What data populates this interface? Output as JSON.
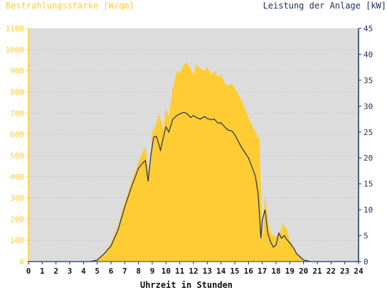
{
  "chart_data": {
    "type": "area",
    "title_left": "Bestrahlungsstärke [W/qm]",
    "title_right": "Leistung der Anlage [kW]",
    "xlabel": "Uhrzeit in Stunden",
    "xlim": [
      0,
      24
    ],
    "y_left_lim": [
      0,
      1100
    ],
    "y_right_lim": [
      0,
      45
    ],
    "x_ticks": [
      0,
      1,
      2,
      3,
      4,
      5,
      6,
      7,
      8,
      9,
      10,
      11,
      12,
      13,
      14,
      15,
      16,
      17,
      18,
      19,
      20,
      21,
      22,
      23,
      24
    ],
    "y_left_ticks": [
      0,
      100,
      200,
      300,
      400,
      500,
      600,
      700,
      800,
      900,
      1000,
      1100
    ],
    "y_right_ticks": [
      0,
      5,
      10,
      15,
      20,
      25,
      30,
      35,
      40,
      45
    ],
    "colors": {
      "plot_bg": "#dcdcdc",
      "irradiance": "#ffcc33",
      "power": "#1a2f5e",
      "left_axis": "#ffcc33",
      "right_axis": "#1a2f5e",
      "grid": "#bdbdbd"
    },
    "series": [
      {
        "axis": "left",
        "kind": "area",
        "x": [
          0,
          4.5,
          5,
          5.5,
          6,
          6.5,
          7,
          7.5,
          8,
          8.3,
          8.5,
          8.8,
          9,
          9.3,
          9.5,
          9.8,
          10,
          10.2,
          10.5,
          10.8,
          11,
          11.3,
          11.5,
          11.8,
          12,
          12.2,
          12.5,
          12.8,
          13,
          13.3,
          13.5,
          13.8,
          14,
          14.3,
          14.5,
          14.8,
          15,
          15.5,
          16,
          16.5,
          16.8,
          17,
          17.2,
          17.5,
          17.8,
          18,
          18.3,
          18.5,
          18.8,
          19,
          19.3,
          19.5,
          20,
          20.5,
          21,
          24
        ],
        "y": [
          0,
          0,
          5,
          40,
          90,
          170,
          280,
          380,
          470,
          520,
          540,
          400,
          610,
          650,
          700,
          620,
          730,
          680,
          820,
          900,
          890,
          930,
          940,
          910,
          880,
          930,
          910,
          900,
          920,
          880,
          900,
          870,
          880,
          840,
          830,
          840,
          820,
          760,
          680,
          610,
          580,
          100,
          320,
          150,
          120,
          120,
          140,
          180,
          150,
          100,
          70,
          40,
          10,
          0,
          0,
          0
        ]
      },
      {
        "axis": "right",
        "kind": "line",
        "x": [
          0,
          4.5,
          5,
          5.5,
          6,
          6.5,
          7,
          7.5,
          8,
          8.3,
          8.5,
          8.7,
          8.9,
          9.1,
          9.3,
          9.6,
          9.9,
          10,
          10.2,
          10.5,
          10.8,
          11,
          11.3,
          11.5,
          11.8,
          12,
          12.2,
          12.5,
          12.8,
          13,
          13.3,
          13.5,
          13.8,
          14,
          14.3,
          14.5,
          14.8,
          15,
          15.5,
          16,
          16.5,
          16.7,
          16.9,
          17,
          17.2,
          17.4,
          17.6,
          17.8,
          18,
          18.2,
          18.4,
          18.6,
          18.8,
          19,
          19.3,
          19.5,
          20,
          20.5,
          21,
          24
        ],
        "y": [
          0,
          0,
          0.3,
          1.5,
          3,
          6,
          10.5,
          14.5,
          18,
          19,
          19.5,
          15.5,
          20.5,
          24,
          24.2,
          21.5,
          25,
          26,
          25,
          27.5,
          28.2,
          28.5,
          28.8,
          28.6,
          27.8,
          28.2,
          27.8,
          27.5,
          28,
          27.6,
          27.4,
          27.5,
          26.7,
          26.8,
          25.9,
          25.4,
          25.2,
          24.5,
          22,
          20,
          16.5,
          13,
          4.5,
          8,
          10,
          5.5,
          3.8,
          2.8,
          3.2,
          5.5,
          4.5,
          5,
          4.2,
          3.6,
          2.5,
          1.5,
          0.3,
          0,
          0,
          0
        ]
      }
    ]
  }
}
